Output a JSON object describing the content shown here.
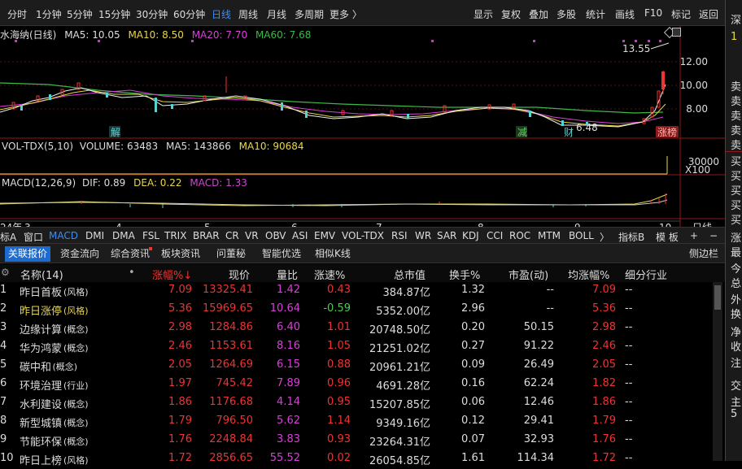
{
  "period_tabs": [
    {
      "label": "分时",
      "active": false
    },
    {
      "label": "1分钟",
      "active": false
    },
    {
      "label": "5分钟",
      "active": false
    },
    {
      "label": "15分钟",
      "active": false
    },
    {
      "label": "30分钟",
      "active": false
    },
    {
      "label": "60分钟",
      "active": false
    },
    {
      "label": "日线",
      "active": true
    },
    {
      "label": "周线",
      "active": false
    },
    {
      "label": "月线",
      "active": false
    },
    {
      "label": "多周期",
      "active": false
    },
    {
      "label": "更多 〉",
      "active": false
    }
  ],
  "tools": [
    "显示",
    "复权",
    "叠加",
    "多股",
    "统计",
    "画线",
    "F10",
    "标记",
    "返回"
  ],
  "kline": {
    "title": "水海纳(日线)",
    "ma5": "MA5: 10.05",
    "ma10": "MA10: 8.50",
    "ma20": "MA20: 7.70",
    "ma60": "MA60: 7.68",
    "ylabels": [
      "12.00",
      "10.00",
      "8.00"
    ],
    "high_label": "13.55",
    "low_label": "6.48",
    "marks": [
      "解",
      "减",
      "财",
      "涨榜"
    ]
  },
  "vol": {
    "title": "VOL-TDX(5,10)",
    "volume": "VOLUME: 63483",
    "ma5": "MA5: 143866",
    "ma10": "MA10: 90684",
    "yl": "30000",
    "unit": "X100"
  },
  "macd": {
    "title": "MACD(12,26,9)",
    "dif": "DIF: 0.89",
    "dea": "DEA: 0.22",
    "macd": "MACD: 1.33"
  },
  "dates": [
    "24年",
    "3",
    "4",
    "5",
    "6",
    "7",
    "8",
    "9",
    "10",
    "日线"
  ],
  "ind_tabs": [
    "标A",
    "窗口",
    "MACD",
    "DMI",
    "DMA",
    "FSL",
    "TRIX",
    "BRAR",
    "CR",
    "VR",
    "OBV",
    "ASI",
    "EMV",
    "VOL-TDX",
    "RSI",
    "WR",
    "SAR",
    "KDJ",
    "CCI",
    "ROC",
    "MTM",
    "BOLL",
    "〉",
    "指标B",
    "模 板",
    "+",
    "−"
  ],
  "table_tabs": [
    "关联报价",
    "资金流向",
    "综合资讯",
    "板块资讯",
    "问董秘",
    "智能优选",
    "相似K线",
    "侧边栏"
  ],
  "headers": [
    "名称(14)",
    "•",
    "涨幅%↓",
    "现价",
    "量比",
    "涨速%",
    "总市值",
    "换手%",
    "市盈(动)",
    "均涨幅%",
    "细分行业"
  ],
  "rows": [
    {
      "no": "1",
      "name": "昨日首板",
      "tag": "(风格)",
      "chg": "7.09",
      "price": "13325.41",
      "vr": "1.42",
      "spd": "0.43",
      "cap": "384.87亿",
      "turn": "1.32",
      "pe": "--",
      "avg": "7.09",
      "ind": "--"
    },
    {
      "no": "2",
      "name": "昨日涨停",
      "tag": "(风格)",
      "chg": "5.36",
      "price": "15969.65",
      "vr": "10.64",
      "spd": "-0.59",
      "cap": "5352.00亿",
      "turn": "2.96",
      "pe": "--",
      "avg": "5.36",
      "ind": "--"
    },
    {
      "no": "3",
      "name": "边缘计算",
      "tag": "(概念)",
      "chg": "2.98",
      "price": "1284.86",
      "vr": "6.40",
      "spd": "1.01",
      "cap": "20748.50亿",
      "turn": "0.20",
      "pe": "50.15",
      "avg": "2.98",
      "ind": "--"
    },
    {
      "no": "4",
      "name": "华为鸿蒙",
      "tag": "(概念)",
      "chg": "2.46",
      "price": "1153.61",
      "vr": "8.16",
      "spd": "1.05",
      "cap": "21251.02亿",
      "turn": "0.27",
      "pe": "91.22",
      "avg": "2.46",
      "ind": "--"
    },
    {
      "no": "5",
      "name": "碳中和",
      "tag": "(概念)",
      "chg": "2.05",
      "price": "1264.69",
      "vr": "6.15",
      "spd": "0.88",
      "cap": "20961.21亿",
      "turn": "0.09",
      "pe": "26.49",
      "avg": "2.05",
      "ind": "--"
    },
    {
      "no": "6",
      "name": "环境治理",
      "tag": "(行业)",
      "chg": "1.97",
      "price": "745.42",
      "vr": "7.89",
      "spd": "0.96",
      "cap": "4691.28亿",
      "turn": "0.16",
      "pe": "62.24",
      "avg": "1.82",
      "ind": "--"
    },
    {
      "no": "7",
      "name": "水利建设",
      "tag": "(概念)",
      "chg": "1.86",
      "price": "1176.68",
      "vr": "4.14",
      "spd": "0.95",
      "cap": "15207.85亿",
      "turn": "0.06",
      "pe": "12.46",
      "avg": "1.86",
      "ind": "--"
    },
    {
      "no": "8",
      "name": "新型城镇",
      "tag": "(概念)",
      "chg": "1.79",
      "price": "796.50",
      "vr": "5.62",
      "spd": "1.14",
      "cap": "9349.16亿",
      "turn": "0.12",
      "pe": "29.41",
      "avg": "1.79",
      "ind": "--"
    },
    {
      "no": "9",
      "name": "节能环保",
      "tag": "(概念)",
      "chg": "1.76",
      "price": "2248.84",
      "vr": "3.83",
      "spd": "0.93",
      "cap": "23264.31亿",
      "turn": "0.07",
      "pe": "32.93",
      "avg": "1.76",
      "ind": "--"
    },
    {
      "no": "10",
      "name": "昨日上榜",
      "tag": "(风格)",
      "chg": "1.72",
      "price": "2856.65",
      "vr": "55.52",
      "spd": "0.02",
      "cap": "26054.85亿",
      "turn": "1.61",
      "pe": "114.34",
      "avg": "1.72",
      "ind": "--"
    }
  ],
  "side": {
    "top": "深",
    "num": "1",
    "sell": [
      "卖",
      "卖",
      "卖",
      "卖",
      "卖"
    ],
    "buy": [
      "买",
      "买",
      "买",
      "买",
      "买"
    ],
    "other": [
      "涨",
      "最",
      "今",
      "总",
      "外",
      "换",
      "净",
      "收",
      "注",
      "交",
      "主",
      "5"
    ]
  }
}
